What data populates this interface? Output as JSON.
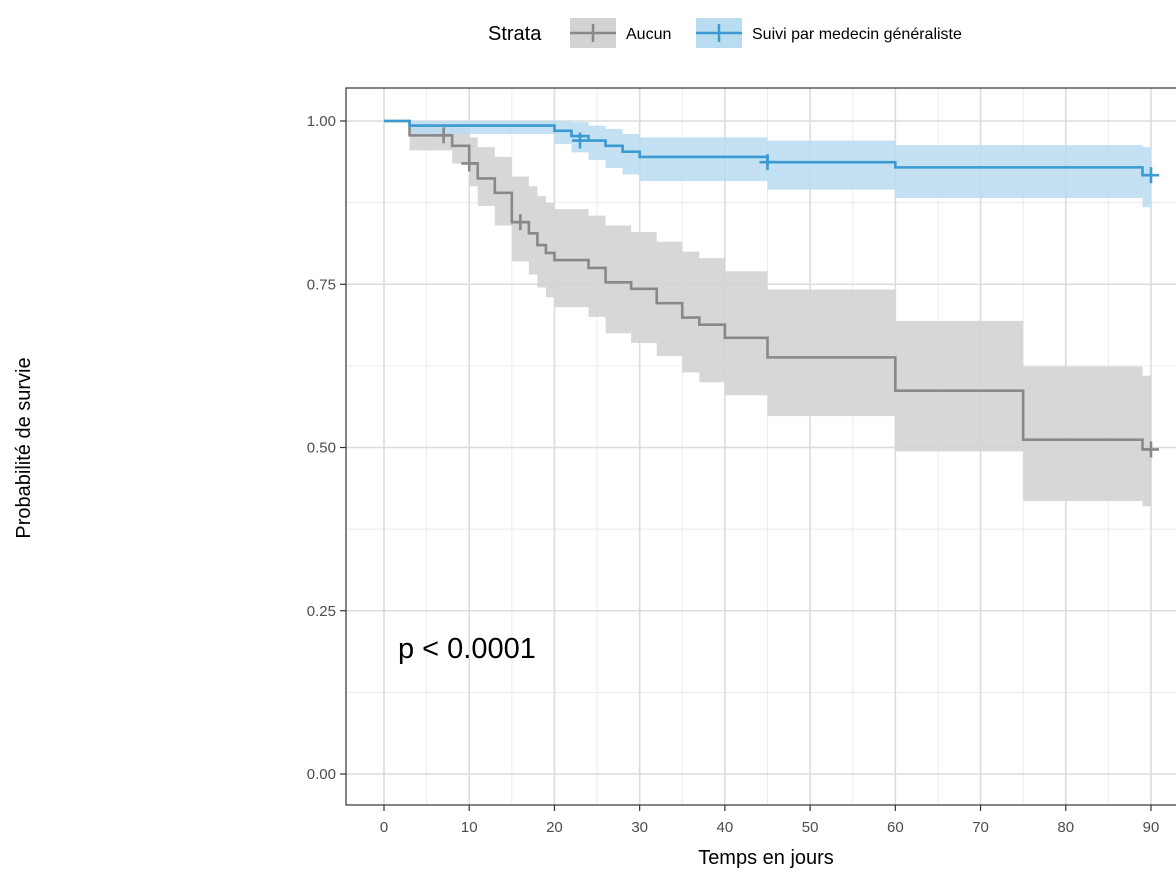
{
  "chart_data": {
    "type": "line",
    "subtype": "kaplan-meier",
    "xlabel": "Temps en jours",
    "ylabel": "Probabilité de survie",
    "xlim": [
      0,
      90
    ],
    "ylim": [
      0,
      1
    ],
    "xticks": [
      "0",
      "10",
      "20",
      "30",
      "40",
      "50",
      "60",
      "70",
      "80",
      "90"
    ],
    "yticks": [
      "0.00",
      "0.25",
      "0.50",
      "0.75",
      "1.00"
    ],
    "grid": true,
    "legend": {
      "title": "Strata",
      "position": "top"
    },
    "annotation": "p < 0.0001",
    "series": [
      {
        "name": "Aucun",
        "color": "#888888",
        "fill": "#d3d3d3",
        "steps": [
          {
            "x": 0,
            "y": 1.0,
            "lo": 1.0,
            "hi": 1.0
          },
          {
            "x": 3,
            "y": 0.978,
            "lo": 0.955,
            "hi": 0.995
          },
          {
            "x": 8,
            "y": 0.962,
            "lo": 0.935,
            "hi": 0.99
          },
          {
            "x": 10,
            "y": 0.935,
            "lo": 0.9,
            "hi": 0.975
          },
          {
            "x": 11,
            "y": 0.912,
            "lo": 0.87,
            "hi": 0.96
          },
          {
            "x": 13,
            "y": 0.89,
            "lo": 0.84,
            "hi": 0.945
          },
          {
            "x": 15,
            "y": 0.845,
            "lo": 0.785,
            "hi": 0.915
          },
          {
            "x": 17,
            "y": 0.828,
            "lo": 0.765,
            "hi": 0.9
          },
          {
            "x": 18,
            "y": 0.81,
            "lo": 0.745,
            "hi": 0.885
          },
          {
            "x": 19,
            "y": 0.798,
            "lo": 0.73,
            "hi": 0.875
          },
          {
            "x": 20,
            "y": 0.787,
            "lo": 0.715,
            "hi": 0.865
          },
          {
            "x": 24,
            "y": 0.775,
            "lo": 0.7,
            "hi": 0.855
          },
          {
            "x": 26,
            "y": 0.753,
            "lo": 0.675,
            "hi": 0.84
          },
          {
            "x": 29,
            "y": 0.743,
            "lo": 0.66,
            "hi": 0.83
          },
          {
            "x": 32,
            "y": 0.721,
            "lo": 0.64,
            "hi": 0.815
          },
          {
            "x": 35,
            "y": 0.699,
            "lo": 0.615,
            "hi": 0.8
          },
          {
            "x": 37,
            "y": 0.688,
            "lo": 0.6,
            "hi": 0.79
          },
          {
            "x": 40,
            "y": 0.668,
            "lo": 0.58,
            "hi": 0.77
          },
          {
            "x": 45,
            "y": 0.638,
            "lo": 0.548,
            "hi": 0.742
          },
          {
            "x": 60,
            "y": 0.587,
            "lo": 0.494,
            "hi": 0.694
          },
          {
            "x": 75,
            "y": 0.512,
            "lo": 0.418,
            "hi": 0.624
          },
          {
            "x": 89,
            "y": 0.497,
            "lo": 0.41,
            "hi": 0.61
          },
          {
            "x": 90,
            "y": 0.497,
            "lo": 0.41,
            "hi": 0.61
          }
        ],
        "censored": [
          {
            "x": 7,
            "y": 0.978
          },
          {
            "x": 10,
            "y": 0.935
          },
          {
            "x": 16,
            "y": 0.845
          },
          {
            "x": 90,
            "y": 0.497
          }
        ]
      },
      {
        "name": "Suivi par medecin généraliste",
        "color": "#3a9ad1",
        "fill": "#b9dcf1",
        "steps": [
          {
            "x": 0,
            "y": 1.0,
            "lo": 1.0,
            "hi": 1.0
          },
          {
            "x": 3,
            "y": 0.993,
            "lo": 0.98,
            "hi": 1.0
          },
          {
            "x": 20,
            "y": 0.985,
            "lo": 0.965,
            "hi": 1.0
          },
          {
            "x": 22,
            "y": 0.977,
            "lo": 0.952,
            "hi": 0.998
          },
          {
            "x": 24,
            "y": 0.97,
            "lo": 0.94,
            "hi": 0.993
          },
          {
            "x": 26,
            "y": 0.962,
            "lo": 0.928,
            "hi": 0.988
          },
          {
            "x": 28,
            "y": 0.953,
            "lo": 0.918,
            "hi": 0.98
          },
          {
            "x": 30,
            "y": 0.945,
            "lo": 0.908,
            "hi": 0.975
          },
          {
            "x": 45,
            "y": 0.937,
            "lo": 0.895,
            "hi": 0.97
          },
          {
            "x": 60,
            "y": 0.929,
            "lo": 0.882,
            "hi": 0.963
          },
          {
            "x": 89,
            "y": 0.917,
            "lo": 0.868,
            "hi": 0.96
          },
          {
            "x": 90,
            "y": 0.917,
            "lo": 0.868,
            "hi": 0.96
          }
        ],
        "censored": [
          {
            "x": 23,
            "y": 0.97
          },
          {
            "x": 45,
            "y": 0.937
          },
          {
            "x": 90,
            "y": 0.917
          }
        ]
      }
    ]
  }
}
